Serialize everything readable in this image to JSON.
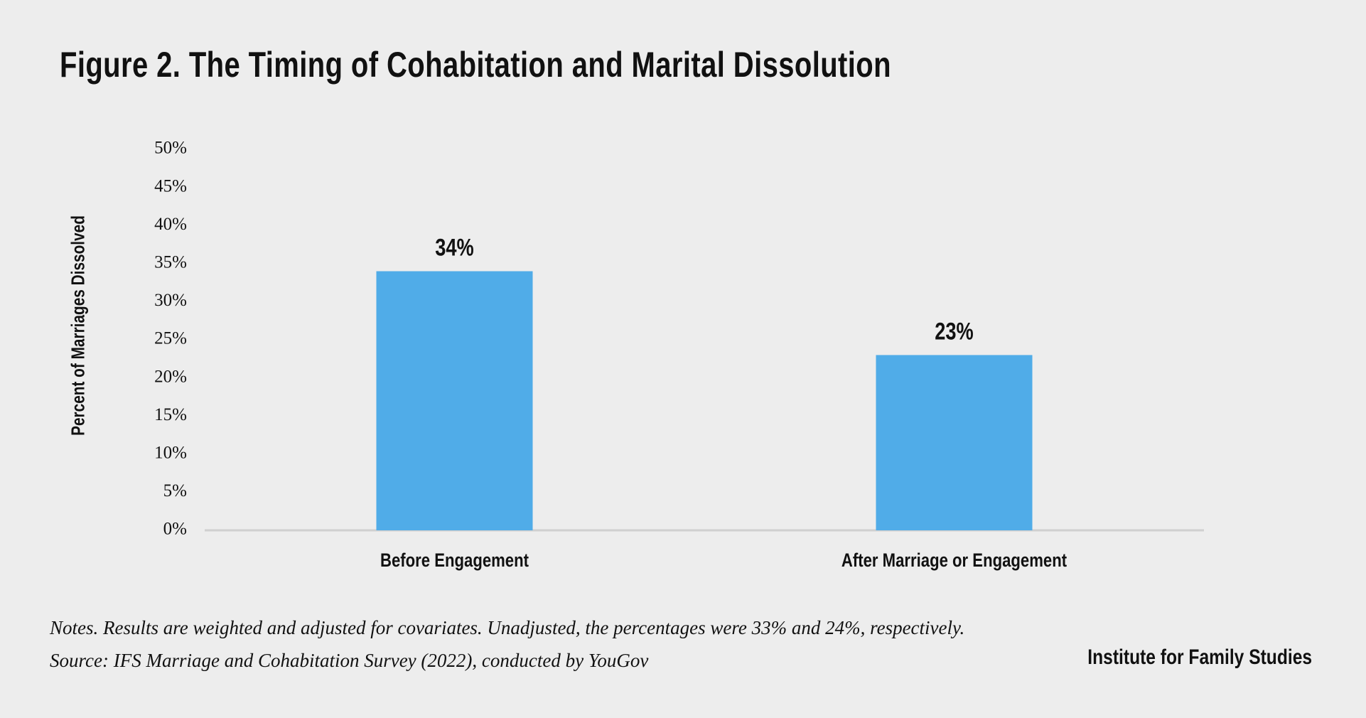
{
  "title": "Figure 2. The Timing of Cohabitation and Marital Dissolution",
  "notes": "Notes. Results are weighted and adjusted for covariates. Unadjusted, the percentages were 33% and 24%, respectively.",
  "source": "Source: IFS Marriage and Cohabitation Survey (2022), conducted by YouGov",
  "brand": "Institute for Family Studies",
  "colors": {
    "bar": "#50ace8",
    "background": "#ededed",
    "axis": "#d0d0d0"
  },
  "chart_data": {
    "type": "bar",
    "title": "Figure 2. The Timing of Cohabitation and Marital Dissolution",
    "xlabel": "",
    "ylabel": "Percent of Marriages Dissolved",
    "categories": [
      "Before Engagement",
      "After Marriage or Engagement"
    ],
    "values": [
      34,
      23
    ],
    "data_labels": [
      "34%",
      "23%"
    ],
    "ylim": [
      0,
      50
    ],
    "yticks": [
      "0%",
      "5%",
      "10%",
      "15%",
      "20%",
      "25%",
      "30%",
      "35%",
      "40%",
      "45%",
      "50%"
    ],
    "grid": false,
    "legend": "none"
  }
}
